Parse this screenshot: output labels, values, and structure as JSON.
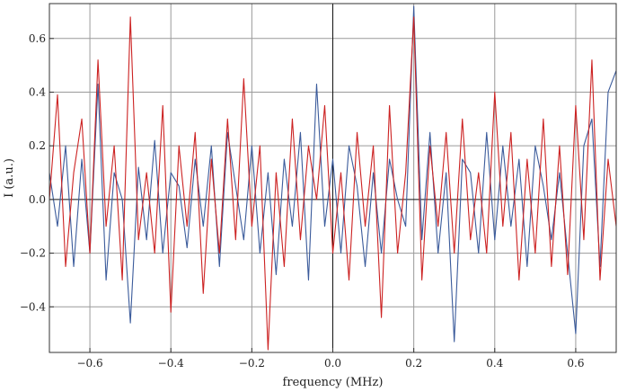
{
  "chart_data": {
    "type": "line",
    "xlabel": "frequency (MHz)",
    "ylabel": "I (a.u.)",
    "xlim": [
      -0.7,
      0.7
    ],
    "ylim": [
      -0.57,
      0.73
    ],
    "xticks": [
      -0.6,
      -0.4,
      -0.2,
      0.0,
      0.2,
      0.4,
      0.6
    ],
    "xtick_labels": [
      "−0.6",
      "−0.4",
      "−0.2",
      "0.0",
      "0.2",
      "0.4",
      "0.6"
    ],
    "yticks": [
      -0.4,
      -0.2,
      0.0,
      0.2,
      0.4,
      0.6
    ],
    "ytick_labels": [
      "−0.4",
      "−0.2",
      "0.0",
      "0.2",
      "0.4",
      "0.6"
    ],
    "grid": true,
    "series": [
      {
        "color": "#3b5b9b",
        "x": [
          -0.7,
          -0.68,
          -0.66,
          -0.64,
          -0.62,
          -0.6,
          -0.58,
          -0.56,
          -0.54,
          -0.52,
          -0.5,
          -0.48,
          -0.46,
          -0.44,
          -0.42,
          -0.4,
          -0.38,
          -0.36,
          -0.34,
          -0.32,
          -0.3,
          -0.28,
          -0.26,
          -0.24,
          -0.22,
          -0.2,
          -0.18,
          -0.16,
          -0.14,
          -0.12,
          -0.1,
          -0.08,
          -0.06,
          -0.04,
          -0.02,
          0.0,
          0.02,
          0.04,
          0.06,
          0.08,
          0.1,
          0.12,
          0.14,
          0.16,
          0.18,
          0.2,
          0.22,
          0.24,
          0.26,
          0.28,
          0.3,
          0.32,
          0.34,
          0.36,
          0.38,
          0.4,
          0.42,
          0.44,
          0.46,
          0.48,
          0.5,
          0.52,
          0.54,
          0.56,
          0.58,
          0.6,
          0.62,
          0.64,
          0.66,
          0.68,
          0.7
        ],
        "values": [
          0.1,
          -0.1,
          0.2,
          -0.25,
          0.15,
          -0.2,
          0.43,
          -0.3,
          0.1,
          0.0,
          -0.46,
          0.12,
          -0.15,
          0.22,
          -0.2,
          0.1,
          0.05,
          -0.18,
          0.15,
          -0.1,
          0.2,
          -0.25,
          0.25,
          0.05,
          -0.15,
          0.2,
          -0.2,
          0.1,
          -0.28,
          0.15,
          -0.1,
          0.25,
          -0.3,
          0.43,
          -0.1,
          0.15,
          -0.2,
          0.2,
          0.05,
          -0.25,
          0.1,
          -0.2,
          0.15,
          0.0,
          -0.1,
          0.72,
          -0.15,
          0.25,
          -0.2,
          0.1,
          -0.53,
          0.15,
          0.1,
          -0.2,
          0.25,
          -0.15,
          0.2,
          -0.1,
          0.15,
          -0.25,
          0.2,
          0.05,
          -0.15,
          0.1,
          -0.2,
          -0.5,
          0.2,
          0.3,
          -0.25,
          0.4,
          0.48
        ]
      },
      {
        "color": "#cc2222",
        "x": [
          -0.7,
          -0.68,
          -0.66,
          -0.64,
          -0.62,
          -0.6,
          -0.58,
          -0.56,
          -0.54,
          -0.52,
          -0.5,
          -0.48,
          -0.46,
          -0.44,
          -0.42,
          -0.4,
          -0.38,
          -0.36,
          -0.34,
          -0.32,
          -0.3,
          -0.28,
          -0.26,
          -0.24,
          -0.22,
          -0.2,
          -0.18,
          -0.16,
          -0.14,
          -0.12,
          -0.1,
          -0.08,
          -0.06,
          -0.04,
          -0.02,
          0.0,
          0.02,
          0.04,
          0.06,
          0.08,
          0.1,
          0.12,
          0.14,
          0.16,
          0.18,
          0.2,
          0.22,
          0.24,
          0.26,
          0.28,
          0.3,
          0.32,
          0.34,
          0.36,
          0.38,
          0.4,
          0.42,
          0.44,
          0.46,
          0.48,
          0.5,
          0.52,
          0.54,
          0.56,
          0.58,
          0.6,
          0.62,
          0.64,
          0.66,
          0.68,
          0.7
        ],
        "values": [
          0.0,
          0.39,
          -0.25,
          0.1,
          0.3,
          -0.2,
          0.52,
          -0.1,
          0.2,
          -0.3,
          0.68,
          -0.15,
          0.1,
          -0.2,
          0.35,
          -0.42,
          0.2,
          -0.1,
          0.25,
          -0.35,
          0.15,
          -0.2,
          0.3,
          -0.15,
          0.45,
          -0.1,
          0.2,
          -0.56,
          0.1,
          -0.25,
          0.3,
          -0.15,
          0.2,
          0.0,
          0.35,
          -0.2,
          0.1,
          -0.3,
          0.25,
          -0.1,
          0.2,
          -0.44,
          0.35,
          -0.2,
          0.1,
          0.68,
          -0.3,
          0.2,
          -0.1,
          0.25,
          -0.2,
          0.3,
          -0.15,
          0.1,
          -0.2,
          0.4,
          -0.1,
          0.25,
          -0.3,
          0.15,
          -0.2,
          0.3,
          -0.25,
          0.2,
          -0.28,
          0.35,
          -0.15,
          0.52,
          -0.3,
          0.15,
          -0.1
        ]
      }
    ]
  }
}
